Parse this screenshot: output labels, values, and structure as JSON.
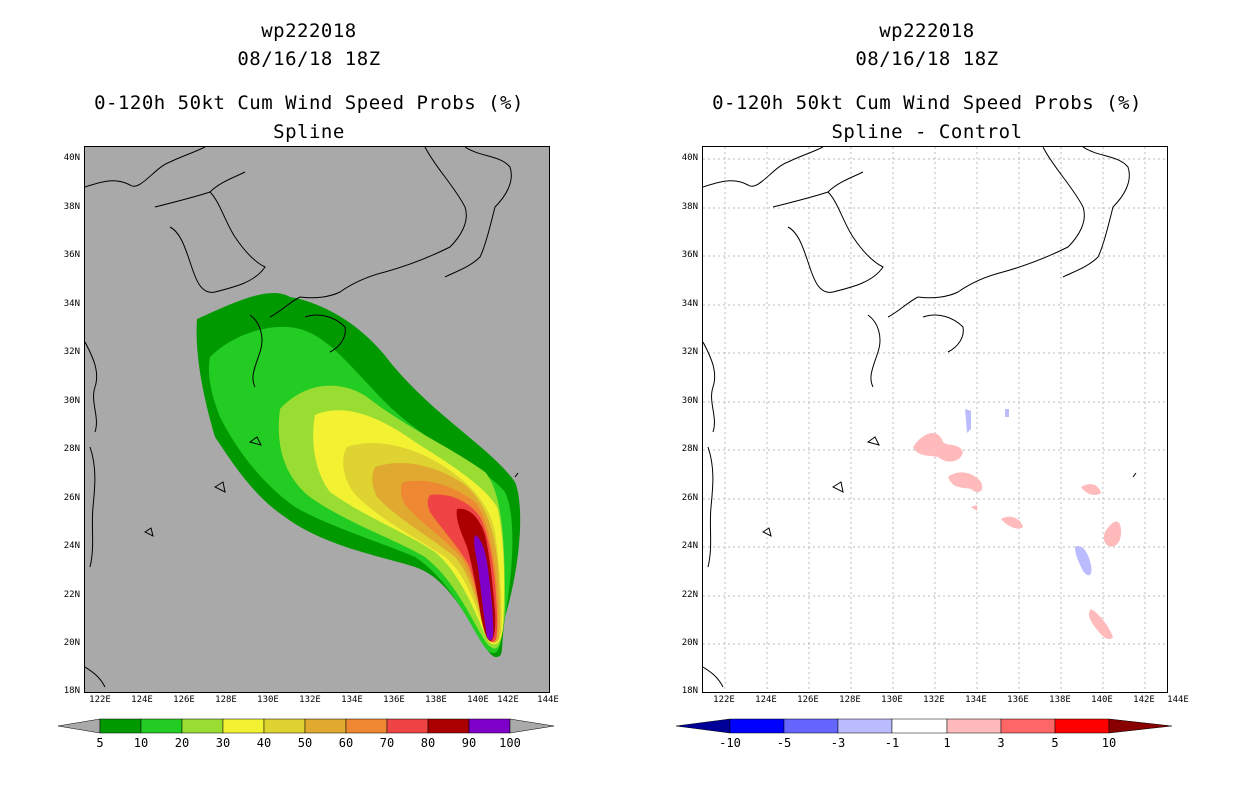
{
  "left": {
    "line1": "wp222018",
    "line2": "08/16/18 18Z",
    "line3": "0-120h 50kt Cum Wind Speed Probs (%)",
    "line4": "Spline",
    "colorbar_labels": [
      "5",
      "10",
      "20",
      "30",
      "40",
      "50",
      "60",
      "70",
      "80",
      "90",
      "100"
    ],
    "colors": {
      "c5": "#009a00",
      "c10": "#22cc22",
      "c20": "#99dd33",
      "c30": "#f2f233",
      "c40": "#dfd332",
      "c50": "#e0aa30",
      "c60": "#ee8833",
      "c70": "#ee4444",
      "c80": "#aa0000",
      "c90": "#7e00c8",
      "land": "#a9a9a9",
      "ocean": "#a9a9a9"
    }
  },
  "right": {
    "line1": "wp222018",
    "line2": "08/16/18 18Z",
    "line3": "0-120h 50kt Cum Wind Speed Probs (%)",
    "line4": "Spline - Control",
    "colorbar_labels": [
      "-10",
      "-5",
      "-3",
      "-1",
      "1",
      "3",
      "5",
      "10"
    ],
    "colors": {
      "n10": "#000099",
      "n5": "#0000ff",
      "n3": "#6666ff",
      "n1": "#bbbbff",
      "zero": "#ffffff",
      "p1": "#ffbbbb",
      "p3": "#ff6666",
      "p5": "#ff0000",
      "p10": "#880000"
    }
  },
  "lat_labels": [
    "40N",
    "38N",
    "36N",
    "34N",
    "32N",
    "30N",
    "28N",
    "26N",
    "24N",
    "22N",
    "20N",
    "18N"
  ],
  "lon_labels": [
    "122E",
    "124E",
    "126E",
    "128E",
    "130E",
    "132E",
    "134E",
    "136E",
    "138E",
    "140E",
    "142E",
    "144E"
  ]
}
